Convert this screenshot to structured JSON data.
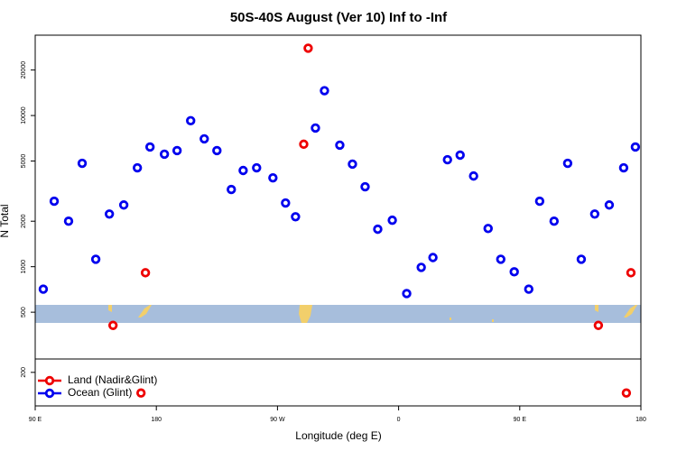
{
  "chart_data": {
    "type": "scatter",
    "title": "50S-40S August (Ver 10)   Inf to -Inf",
    "x_label": "Longitude (deg E)",
    "y_label": "N Total",
    "log_y": true,
    "legend": "bottomleft",
    "xlim": [
      90,
      540
    ],
    "xticks": [
      {
        "value": 90,
        "label": "90 E"
      },
      {
        "value": 180,
        "label": "180"
      },
      {
        "value": 270,
        "label": "90 W"
      },
      {
        "value": 360,
        "label": "0"
      },
      {
        "value": 450,
        "label": "90 E"
      },
      {
        "value": 540,
        "label": "180"
      }
    ],
    "ylim": [
      120,
      34000
    ],
    "yticks": [
      200,
      500,
      1000,
      2000,
      5000,
      10000,
      20000
    ],
    "series": [
      {
        "name": "Land (Nadir&Glint)",
        "color": "#ee0000",
        "x": [
          147.8,
          171.9,
          292.8,
          289.5,
          508.4,
          532.6,
          168.6,
          529.2
        ],
        "values": [
          409,
          912,
          27900,
          6460,
          409,
          912,
          146,
          146
        ]
      },
      {
        "name": "Ocean (Glint)",
        "color": "#0000ee",
        "x": [
          96.0,
          104.1,
          114.8,
          124.9,
          135.0,
          145.1,
          155.8,
          165.9,
          175.3,
          186.0,
          195.4,
          205.5,
          215.6,
          225.0,
          235.7,
          244.5,
          254.5,
          266.6,
          276.0,
          283.4,
          298.2,
          304.9,
          316.3,
          325.7,
          335.1,
          344.5,
          355.3,
          366.0,
          376.8,
          385.5,
          396.3,
          405.7,
          415.7,
          426.5,
          435.9,
          445.9,
          456.7,
          464.8,
          475.5,
          485.6,
          495.7,
          505.7,
          516.5,
          527.2,
          535.9
        ],
        "values": [
          710,
          2710,
          2000,
          4830,
          1120,
          2230,
          2560,
          4510,
          6190,
          5550,
          5860,
          9240,
          7010,
          5860,
          3240,
          4330,
          4510,
          3870,
          2640,
          2140,
          8270,
          14600,
          6370,
          4770,
          3380,
          1770,
          2030,
          664,
          990,
          1150,
          5100,
          5470,
          3980,
          1790,
          1120,
          925,
          710,
          2710,
          2000,
          4830,
          1120,
          2230,
          2560,
          4510,
          6190
        ]
      }
    ]
  }
}
